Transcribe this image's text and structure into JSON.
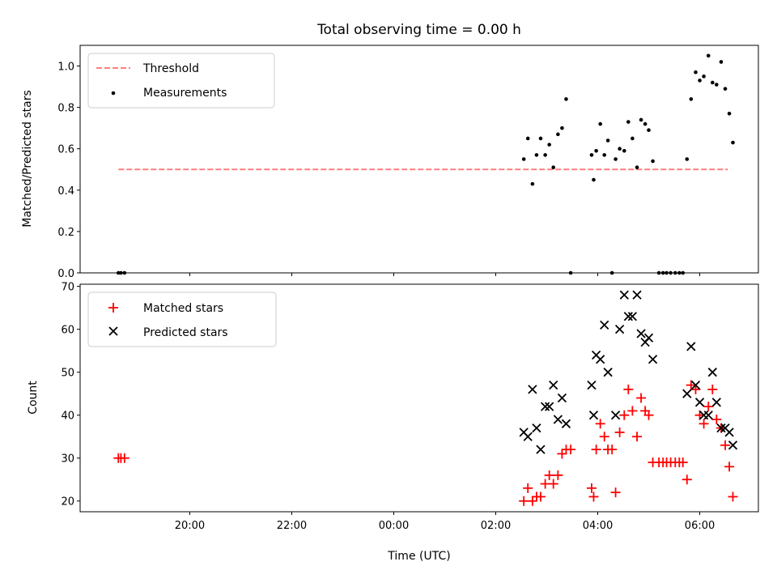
{
  "chart_data": {
    "title": "Total observing time = 0.00 h",
    "xlabel": "Time (UTC)",
    "x_range_hours": [
      17.85,
      31.15
    ],
    "x_tick_hours": [
      20,
      22,
      24,
      26,
      28,
      30
    ],
    "x_tick_labels": [
      "20:00",
      "22:00",
      "00:00",
      "02:00",
      "04:00",
      "06:00"
    ],
    "panels": [
      {
        "type": "scatter",
        "ylabel": "Matched/Predicted stars",
        "ylim": [
          0,
          1.1
        ],
        "yticks": [
          0.0,
          0.2,
          0.4,
          0.6,
          0.8,
          1.0
        ],
        "ytick_labels": [
          "0.0",
          "0.2",
          "0.4",
          "0.6",
          "0.8",
          "1.0"
        ],
        "legend_position": "top-left",
        "threshold": {
          "name": "Threshold",
          "y": 0.5,
          "x_start": 18.6,
          "x_end": 30.55,
          "color": "#ff7f7f"
        },
        "series": [
          {
            "name": "Measurements",
            "marker": "dot",
            "color": "#000000",
            "points": [
              [
                18.6,
                0
              ],
              [
                18.65,
                0
              ],
              [
                18.72,
                0
              ],
              [
                26.55,
                0.55
              ],
              [
                26.63,
                0.65
              ],
              [
                26.72,
                0.43
              ],
              [
                26.8,
                0.57
              ],
              [
                26.88,
                0.65
              ],
              [
                26.97,
                0.57
              ],
              [
                27.05,
                0.62
              ],
              [
                27.13,
                0.51
              ],
              [
                27.22,
                0.67
              ],
              [
                27.3,
                0.7
              ],
              [
                27.38,
                0.84
              ],
              [
                27.47,
                0
              ],
              [
                27.88,
                0.57
              ],
              [
                27.92,
                0.45
              ],
              [
                27.97,
                0.59
              ],
              [
                28.05,
                0.72
              ],
              [
                28.13,
                0.57
              ],
              [
                28.2,
                0.64
              ],
              [
                28.28,
                0
              ],
              [
                28.35,
                0.55
              ],
              [
                28.43,
                0.6
              ],
              [
                28.52,
                0.59
              ],
              [
                28.6,
                0.73
              ],
              [
                28.68,
                0.65
              ],
              [
                28.77,
                0.51
              ],
              [
                28.85,
                0.74
              ],
              [
                28.93,
                0.72
              ],
              [
                29.0,
                0.69
              ],
              [
                29.08,
                0.54
              ],
              [
                29.2,
                0
              ],
              [
                29.28,
                0
              ],
              [
                29.35,
                0
              ],
              [
                29.43,
                0
              ],
              [
                29.52,
                0
              ],
              [
                29.6,
                0
              ],
              [
                29.67,
                0
              ],
              [
                29.75,
                0.55
              ],
              [
                29.83,
                0.84
              ],
              [
                29.92,
                0.97
              ],
              [
                30.0,
                0.93
              ],
              [
                30.08,
                0.95
              ],
              [
                30.17,
                1.05
              ],
              [
                30.25,
                0.92
              ],
              [
                30.33,
                0.91
              ],
              [
                30.42,
                1.02
              ],
              [
                30.5,
                0.89
              ],
              [
                30.58,
                0.77
              ],
              [
                30.65,
                0.63
              ]
            ]
          }
        ]
      },
      {
        "type": "scatter",
        "ylabel": "Count",
        "ylim": [
          17.5,
          70.5
        ],
        "yticks": [
          20,
          30,
          40,
          50,
          60,
          70
        ],
        "ytick_labels": [
          "20",
          "30",
          "40",
          "50",
          "60",
          "70"
        ],
        "legend_position": "top-left",
        "series": [
          {
            "name": "Matched stars",
            "marker": "plus",
            "color": "#ff0000",
            "points": [
              [
                18.6,
                30
              ],
              [
                18.65,
                30
              ],
              [
                18.72,
                30
              ],
              [
                26.55,
                20
              ],
              [
                26.63,
                23
              ],
              [
                26.72,
                20
              ],
              [
                26.8,
                21
              ],
              [
                26.88,
                21
              ],
              [
                26.97,
                24
              ],
              [
                27.05,
                26
              ],
              [
                27.13,
                24
              ],
              [
                27.22,
                26
              ],
              [
                27.3,
                31
              ],
              [
                27.38,
                32
              ],
              [
                27.47,
                32
              ],
              [
                27.88,
                23
              ],
              [
                27.92,
                21
              ],
              [
                27.97,
                32
              ],
              [
                28.05,
                38
              ],
              [
                28.13,
                35
              ],
              [
                28.2,
                32
              ],
              [
                28.28,
                32
              ],
              [
                28.35,
                22
              ],
              [
                28.43,
                36
              ],
              [
                28.52,
                40
              ],
              [
                28.6,
                46
              ],
              [
                28.68,
                41
              ],
              [
                28.77,
                35
              ],
              [
                28.85,
                44
              ],
              [
                28.93,
                41
              ],
              [
                29.0,
                40
              ],
              [
                29.08,
                29
              ],
              [
                29.2,
                29
              ],
              [
                29.28,
                29
              ],
              [
                29.35,
                29
              ],
              [
                29.43,
                29
              ],
              [
                29.52,
                29
              ],
              [
                29.6,
                29
              ],
              [
                29.67,
                29
              ],
              [
                29.75,
                25
              ],
              [
                29.83,
                47
              ],
              [
                29.92,
                46
              ],
              [
                30.0,
                40
              ],
              [
                30.08,
                38
              ],
              [
                30.17,
                42
              ],
              [
                30.25,
                46
              ],
              [
                30.33,
                39
              ],
              [
                30.42,
                37
              ],
              [
                30.5,
                33
              ],
              [
                30.58,
                28
              ],
              [
                30.65,
                21
              ]
            ]
          },
          {
            "name": "Predicted stars",
            "marker": "x",
            "color": "#000000",
            "points": [
              [
                26.55,
                36
              ],
              [
                26.63,
                35
              ],
              [
                26.72,
                46
              ],
              [
                26.8,
                37
              ],
              [
                26.88,
                32
              ],
              [
                26.97,
                42
              ],
              [
                27.05,
                42
              ],
              [
                27.13,
                47
              ],
              [
                27.22,
                39
              ],
              [
                27.3,
                44
              ],
              [
                27.38,
                38
              ],
              [
                27.88,
                47
              ],
              [
                27.92,
                40
              ],
              [
                27.97,
                54
              ],
              [
                28.05,
                53
              ],
              [
                28.13,
                61
              ],
              [
                28.2,
                50
              ],
              [
                28.35,
                40
              ],
              [
                28.43,
                60
              ],
              [
                28.52,
                68
              ],
              [
                28.6,
                63
              ],
              [
                28.68,
                63
              ],
              [
                28.77,
                68
              ],
              [
                28.85,
                59
              ],
              [
                28.93,
                57
              ],
              [
                29.0,
                58
              ],
              [
                29.08,
                53
              ],
              [
                29.75,
                45
              ],
              [
                29.83,
                56
              ],
              [
                29.92,
                47
              ],
              [
                30.0,
                43
              ],
              [
                30.08,
                40
              ],
              [
                30.17,
                40
              ],
              [
                30.25,
                50
              ],
              [
                30.33,
                43
              ],
              [
                30.42,
                37
              ],
              [
                30.5,
                37
              ],
              [
                30.58,
                36
              ],
              [
                30.65,
                33
              ]
            ]
          }
        ]
      }
    ]
  }
}
